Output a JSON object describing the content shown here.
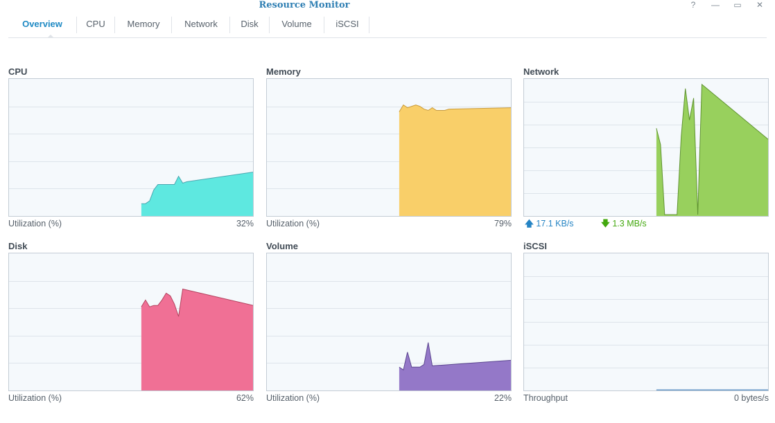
{
  "window": {
    "title": "Resource Monitor",
    "help_glyph": "?",
    "minimize_glyph": "—",
    "maximize_glyph": "▭",
    "close_glyph": "✕"
  },
  "tabs": [
    {
      "label": "Overview",
      "active": true
    },
    {
      "label": "CPU"
    },
    {
      "label": "Memory"
    },
    {
      "label": "Network"
    },
    {
      "label": "Disk"
    },
    {
      "label": "Volume"
    },
    {
      "label": "iSCSI"
    }
  ],
  "panels": {
    "cpu": {
      "title": "CPU",
      "footer_label": "Utilization (%)",
      "footer_value": "32%",
      "color": "#5ee8e0",
      "stroke": "#4aa7b0"
    },
    "memory": {
      "title": "Memory",
      "footer_label": "Utilization (%)",
      "footer_value": "79%",
      "color": "#f9cf69",
      "stroke": "#c89a3a"
    },
    "network": {
      "title": "Network",
      "upload_icon": "arrow-up-icon",
      "upload": "17.1 KB/s",
      "download_icon": "arrow-down-icon",
      "download": "1.3 MB/s",
      "color": "#98d05d",
      "stroke": "#5f9331",
      "upload_color": "#2584c4",
      "download_color": "#43a80e"
    },
    "disk": {
      "title": "Disk",
      "footer_label": "Utilization (%)",
      "footer_value": "62%",
      "color": "#f07095",
      "stroke": "#b3435f"
    },
    "volume": {
      "title": "Volume",
      "footer_label": "Utilization (%)",
      "footer_value": "22%",
      "color": "#9478c8",
      "stroke": "#5c4690"
    },
    "iscsi": {
      "title": "iSCSI",
      "footer_label": "Throughput",
      "footer_value": "0 bytes/s",
      "color": "#7eb2de",
      "stroke": "#5d8fc0"
    }
  },
  "chart_data": [
    {
      "type": "area",
      "name": "cpu",
      "ylim": [
        0,
        100
      ],
      "grid": true,
      "x_window": 60,
      "start_index": 32,
      "values": [
        9,
        9,
        11,
        19,
        23,
        23,
        23,
        23,
        23,
        29,
        24,
        25,
        32
      ]
    },
    {
      "type": "area",
      "name": "memory",
      "ylim": [
        0,
        100
      ],
      "grid": true,
      "x_window": 60,
      "start_index": 32,
      "values": [
        76,
        81,
        79,
        80,
        81,
        80,
        78,
        77,
        79,
        77,
        77,
        77,
        78,
        79
      ]
    },
    {
      "type": "area",
      "name": "network",
      "ylim": [
        0,
        100
      ],
      "grid": true,
      "x_window": 60,
      "start_index": 32,
      "values": [
        64,
        52,
        1,
        1,
        1,
        1,
        58,
        93,
        70,
        86,
        1,
        96,
        56
      ]
    },
    {
      "type": "area",
      "name": "disk",
      "ylim": [
        0,
        100
      ],
      "grid": true,
      "x_window": 60,
      "start_index": 32,
      "values": [
        61,
        66,
        61,
        62,
        62,
        66,
        71,
        69,
        63,
        54,
        74,
        62
      ]
    },
    {
      "type": "area",
      "name": "volume",
      "ylim": [
        0,
        100
      ],
      "grid": true,
      "x_window": 60,
      "start_index": 32,
      "values": [
        17,
        15,
        28,
        17,
        17,
        17,
        19,
        35,
        18,
        22
      ]
    },
    {
      "type": "area",
      "name": "iscsi",
      "ylim": [
        0,
        100
      ],
      "grid": true,
      "x_window": 60,
      "start_index": 32,
      "values": [
        0.5,
        0.5,
        0.5,
        0.5,
        0.5,
        0.5,
        0.5,
        0.5,
        0.5,
        0.5,
        0.5,
        0.5,
        0.5,
        0.5
      ]
    }
  ]
}
